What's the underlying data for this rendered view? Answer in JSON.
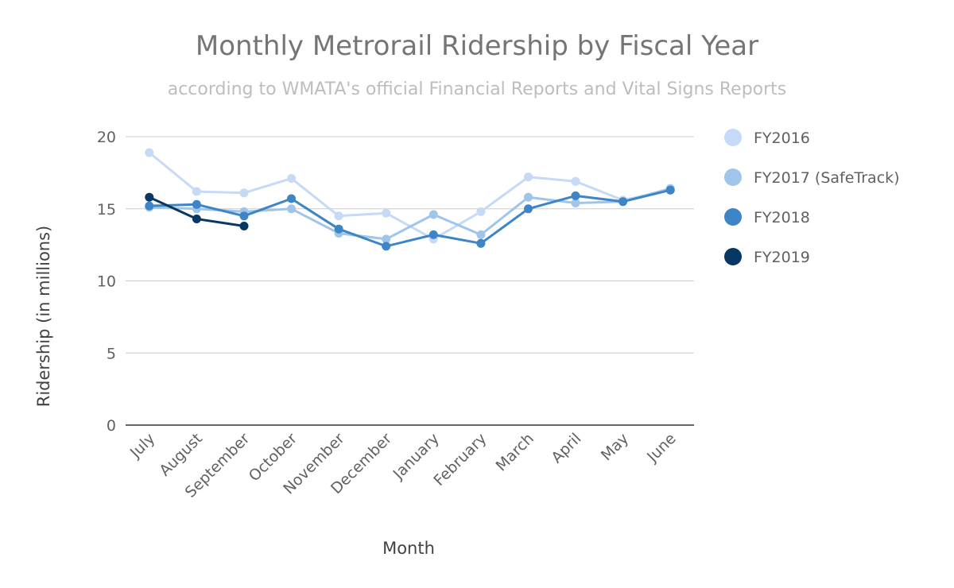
{
  "chart_data": {
    "type": "line",
    "title": "Monthly Metrorail Ridership by Fiscal Year",
    "subtitle": "according to WMATA's official Financial Reports and Vital Signs Reports",
    "xlabel": "Month",
    "ylabel": "Ridership (in millions)",
    "ylim": [
      0,
      20
    ],
    "yticks": [
      0,
      5,
      10,
      15,
      20
    ],
    "grid": true,
    "legend_position": "right",
    "categories": [
      "July",
      "August",
      "September",
      "October",
      "November",
      "December",
      "January",
      "February",
      "March",
      "April",
      "May",
      "June"
    ],
    "series": [
      {
        "name": "FY2016",
        "color": "#c6d9f7",
        "values": [
          18.9,
          16.2,
          16.1,
          17.1,
          14.5,
          14.7,
          12.9,
          14.8,
          17.2,
          16.9,
          15.6,
          16.3
        ]
      },
      {
        "name": "FY2017 (SafeTrack)",
        "color": "#9fc5eb",
        "values": [
          15.1,
          15.0,
          14.8,
          15.0,
          13.3,
          12.9,
          14.6,
          13.2,
          15.8,
          15.4,
          15.5,
          16.4
        ]
      },
      {
        "name": "FY2018",
        "color": "#3d85c6",
        "values": [
          15.2,
          15.3,
          14.5,
          15.7,
          13.6,
          12.4,
          13.2,
          12.6,
          15.0,
          15.9,
          15.5,
          16.3
        ]
      },
      {
        "name": "FY2019",
        "color": "#073763",
        "values": [
          15.8,
          14.3,
          13.8,
          null,
          null,
          null,
          null,
          null,
          null,
          null,
          null,
          null
        ]
      }
    ]
  }
}
